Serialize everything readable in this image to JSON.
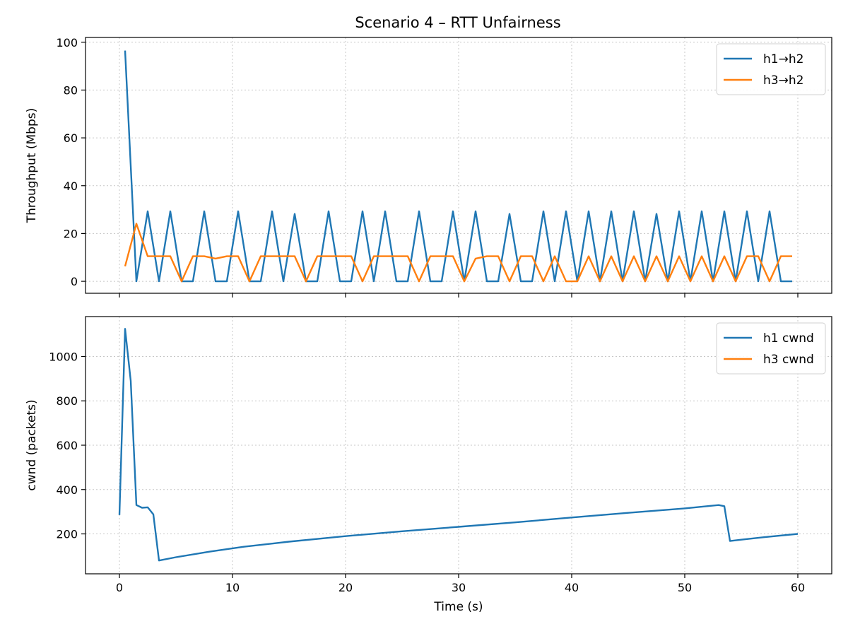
{
  "figure_title": "Scenario 4 – RTT Unfairness",
  "chart_data": [
    {
      "type": "line",
      "title": "Scenario 4 – RTT Unfairness",
      "xlabel": "",
      "ylabel": "Throughput (Mbps)",
      "xlim": [
        -3,
        63
      ],
      "ylim": [
        -5,
        102
      ],
      "xticks": [
        0,
        10,
        20,
        30,
        40,
        50,
        60
      ],
      "xtick_labels_shown": false,
      "yticks": [
        0,
        20,
        40,
        60,
        80,
        100
      ],
      "grid": true,
      "legend_position": "top-right",
      "series": [
        {
          "name": "h1→h2",
          "color": "#1f77b4",
          "x": [
            0.5,
            1.5,
            2.5,
            3.5,
            4.5,
            5.5,
            6.5,
            7.5,
            8.5,
            9.5,
            10.5,
            11.5,
            12.5,
            13.5,
            14.5,
            15.5,
            16.5,
            17.5,
            18.5,
            19.5,
            20.5,
            21.5,
            22.5,
            23.5,
            24.5,
            25.5,
            26.5,
            27.5,
            28.5,
            29.5,
            30.5,
            31.5,
            32.5,
            33.5,
            34.5,
            35.5,
            36.5,
            37.5,
            38.5,
            39.5,
            40.5,
            41.5,
            42.5,
            43.5,
            44.5,
            45.5,
            46.5,
            47.5,
            48.5,
            49.5,
            50.5,
            51.5,
            52.5,
            53.5,
            54.5,
            55.5,
            56.5,
            57.5,
            58.5,
            59.5
          ],
          "y": [
            96.5,
            0,
            29.3,
            0,
            29.3,
            0,
            0,
            29.3,
            0,
            0,
            29.3,
            0,
            0,
            29.3,
            0,
            28.2,
            0,
            0,
            29.3,
            0,
            0,
            29.3,
            0,
            29.3,
            0,
            0,
            29.3,
            0,
            0,
            29.3,
            0,
            29.3,
            0,
            0,
            28.2,
            0,
            0,
            29.3,
            0,
            29.3,
            0,
            29.3,
            0,
            29.3,
            0,
            29.3,
            0,
            28.2,
            0,
            29.3,
            0,
            29.3,
            0,
            29.3,
            0,
            29.3,
            0,
            29.3,
            0,
            0
          ]
        },
        {
          "name": "h3→h2",
          "color": "#ff7f0e",
          "x": [
            0.5,
            1.5,
            2.5,
            3.5,
            4.5,
            5.5,
            6.5,
            7.5,
            8.5,
            9.5,
            10.5,
            11.5,
            12.5,
            13.5,
            14.5,
            15.5,
            16.5,
            17.5,
            18.5,
            19.5,
            20.5,
            21.5,
            22.5,
            23.5,
            24.5,
            25.5,
            26.5,
            27.5,
            28.5,
            29.5,
            30.5,
            31.5,
            32.5,
            33.5,
            34.5,
            35.5,
            36.5,
            37.5,
            38.5,
            39.5,
            40.5,
            41.5,
            42.5,
            43.5,
            44.5,
            45.5,
            46.5,
            47.5,
            48.5,
            49.5,
            50.5,
            51.5,
            52.5,
            53.5,
            54.5,
            55.5,
            56.5,
            57.5,
            58.5,
            59.5
          ],
          "y": [
            6.3,
            24.1,
            10.5,
            10.5,
            10.5,
            0,
            10.5,
            10.5,
            9.5,
            10.5,
            10.5,
            0,
            10.5,
            10.5,
            10.5,
            10.5,
            0,
            10.5,
            10.5,
            10.5,
            10.5,
            0,
            10.5,
            10.5,
            10.5,
            10.5,
            0,
            10.5,
            10.5,
            10.5,
            0,
            9.5,
            10.5,
            10.5,
            0,
            10.5,
            10.5,
            0,
            10.5,
            0,
            0,
            10.5,
            0,
            10.5,
            0,
            10.5,
            0,
            10.5,
            0,
            10.5,
            0,
            10.5,
            0,
            10.5,
            0,
            10.5,
            10.5,
            0,
            10.5,
            10.5
          ]
        }
      ]
    },
    {
      "type": "line",
      "title": "",
      "xlabel": "Time (s)",
      "ylabel": "cwnd (packets)",
      "xlim": [
        -3,
        63
      ],
      "ylim": [
        20,
        1180
      ],
      "xticks": [
        0,
        10,
        20,
        30,
        40,
        50,
        60
      ],
      "xtick_labels_shown": true,
      "yticks": [
        200,
        400,
        600,
        800,
        1000
      ],
      "grid": true,
      "legend_position": "top-right",
      "series": [
        {
          "name": "h1 cwnd",
          "color": "#1f77b4",
          "x": [
            0,
            0.5,
            1,
            1.5,
            2,
            2.5,
            3,
            3.5,
            5,
            8,
            11,
            15,
            20,
            25,
            30,
            35,
            40,
            45,
            50,
            53,
            53.5,
            54,
            55,
            57,
            60
          ],
          "y": [
            285,
            1125,
            890,
            330,
            318,
            320,
            288,
            80,
            95,
            120,
            142,
            165,
            190,
            212,
            232,
            252,
            274,
            295,
            315,
            330,
            325,
            168,
            174,
            185,
            200
          ]
        },
        {
          "name": "h3 cwnd",
          "color": "#ff7f0e",
          "x": [],
          "y": []
        }
      ]
    }
  ]
}
